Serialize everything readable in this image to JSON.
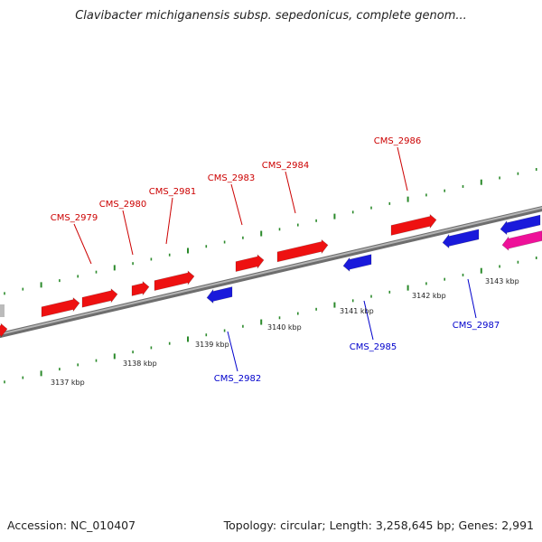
{
  "title": "Clavibacter michiganensis subsp. sepedonicus, complete genom...",
  "footer": {
    "accession": "Accession: NC_010407",
    "summary": "Topology: circular; Length: 3,258,645 bp; Genes: 2,991"
  },
  "colors": {
    "forward_gene": "#ee1111",
    "reverse_gene": "#1a1adb",
    "highlight_gene": "#ee1199",
    "other_gene": "#bbbbbb",
    "backbone": "#8c8c8c",
    "ticks": "#2b8a2b",
    "forward_label": "#cc0000",
    "reverse_label": "#0000cc"
  },
  "scale": {
    "tick_labels": [
      "3137 kbp",
      "3138 kbp",
      "3139 kbp",
      "3140 kbp",
      "3141 kbp",
      "3142 kbp",
      "3143 kbp"
    ]
  },
  "labels": {
    "forward": [
      "CMS_2979",
      "CMS_2980",
      "CMS_2981",
      "CMS_2983",
      "CMS_2984",
      "CMS_2986"
    ],
    "reverse": [
      "CMS_2982",
      "CMS_2985",
      "CMS_2987"
    ]
  }
}
